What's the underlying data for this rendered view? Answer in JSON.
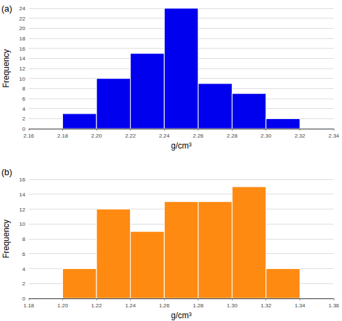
{
  "chart_data": [
    {
      "type": "histogram",
      "title": "(a)",
      "x_label": "g/cm³",
      "y_label": "Frequency",
      "bins": [
        2.18,
        2.2,
        2.22,
        2.24,
        2.26,
        2.28,
        2.3,
        2.32
      ],
      "values": [
        3,
        10,
        15,
        24,
        9,
        7,
        2
      ],
      "color": "#0000ee",
      "xlim": [
        2.16,
        2.34
      ],
      "xticks": [
        2.16,
        2.18,
        {
          "value": 2.2,
          "label": "2.20"
        },
        2.22,
        2.24,
        2.26,
        2.28,
        {
          "value": 2.3,
          "label": "2.30"
        },
        2.32,
        2.34
      ],
      "ylim": [
        0,
        24
      ],
      "yticks": [
        0,
        2,
        4,
        6,
        8,
        10,
        12,
        14,
        16,
        18,
        20,
        22,
        24
      ],
      "grid": true
    },
    {
      "type": "histogram",
      "title": "(b)",
      "x_label": "g/cm³",
      "y_label": "Frequency",
      "bins": [
        1.2,
        1.22,
        1.24,
        1.26,
        1.28,
        1.3,
        1.32,
        1.34
      ],
      "values": [
        4,
        12,
        9,
        13,
        13,
        15,
        4
      ],
      "color": "#ff8a12",
      "xlim": [
        1.18,
        1.36
      ],
      "xticks": [
        1.18,
        {
          "value": 1.2,
          "label": "1.20"
        },
        1.22,
        1.24,
        1.26,
        1.28,
        {
          "value": 1.3,
          "label": "1.30"
        },
        1.32,
        1.34,
        1.36
      ],
      "ylim": [
        0,
        16
      ],
      "yticks": [
        0,
        2,
        4,
        6,
        8,
        10,
        12,
        14,
        16
      ],
      "grid": true
    }
  ]
}
